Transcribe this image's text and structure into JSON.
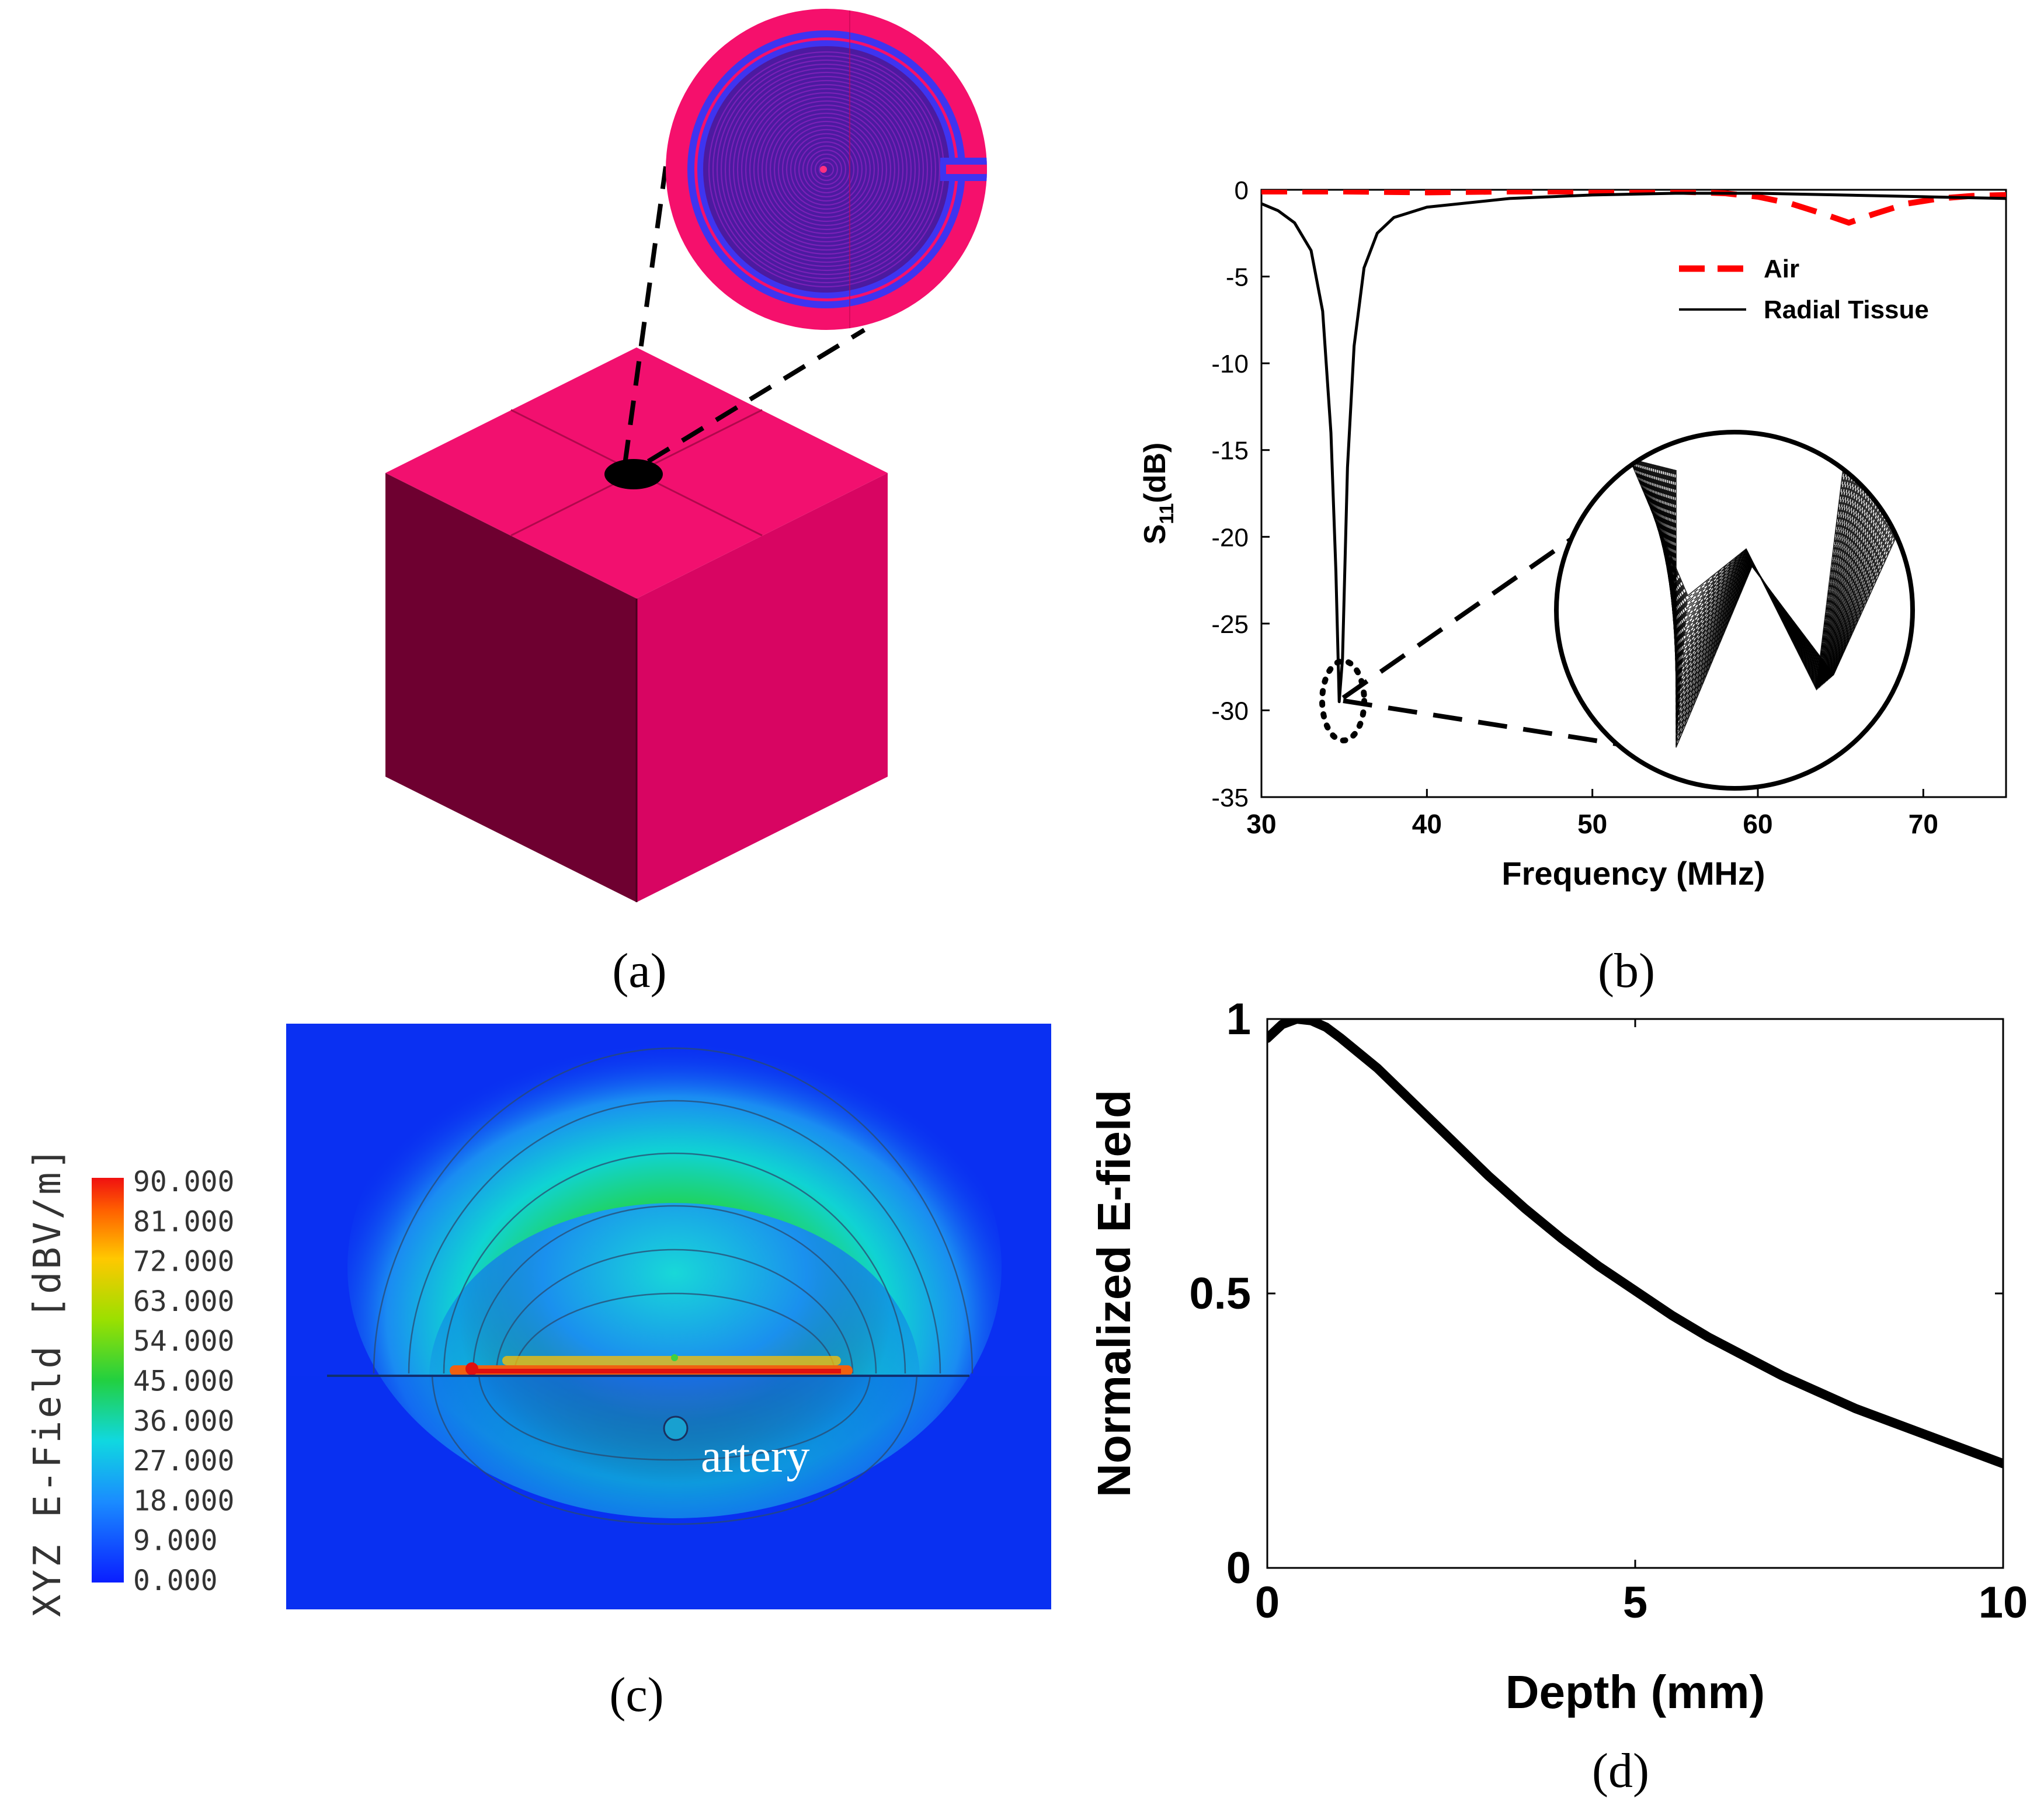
{
  "panel_labels": {
    "a": "(a)",
    "b": "(b)",
    "c": "(c)",
    "d": "(d)"
  },
  "colors": {
    "tissue_top": "#f2106f",
    "tissue_front": "#d80562",
    "tissue_side": "#6e0030",
    "coil_pink": "#f5106c",
    "coil_purple": "#6a16a8",
    "coil_ring": "#3e34f0",
    "air_line": "#ff0000",
    "tissue_line": "#000000"
  },
  "panel_c": {
    "colorbar_title": "XYZ E-Field [dBV/m]",
    "colorbar_ticks": [
      "90.000",
      "81.000",
      "72.000",
      "63.000",
      "54.000",
      "45.000",
      "36.000",
      "27.000",
      "18.000",
      "9.000",
      "0.000"
    ],
    "annotation": "artery"
  },
  "chart_data": [
    {
      "type": "line",
      "panel": "b",
      "title": "",
      "xlabel": "Frequency (MHz)",
      "ylabel_main": "S",
      "ylabel_sub": "11",
      "ylabel_unit": "(dB)",
      "xlim": [
        30,
        75
      ],
      "ylim": [
        -35,
        0
      ],
      "xticks": [
        30,
        40,
        50,
        60,
        70
      ],
      "yticks": [
        0,
        -5,
        -10,
        -15,
        -20,
        -25,
        -30,
        -35
      ],
      "legend": [
        "Air",
        "Radial Tissue"
      ],
      "legend_position": "top-right",
      "series": [
        {
          "name": "Air",
          "style": "dashed",
          "color": "#ff0000",
          "x": [
            30,
            35,
            40,
            45,
            50,
            55,
            58,
            60,
            62,
            64,
            65.5,
            67,
            69,
            71,
            73,
            75
          ],
          "y": [
            -0.1,
            -0.1,
            -0.15,
            -0.1,
            -0.1,
            -0.1,
            -0.2,
            -0.4,
            -0.8,
            -1.4,
            -1.9,
            -1.4,
            -0.8,
            -0.5,
            -0.35,
            -0.3
          ]
        },
        {
          "name": "Radial Tissue",
          "style": "solid",
          "color": "#000000",
          "x": [
            30,
            31,
            32,
            33,
            33.7,
            34.2,
            34.5,
            34.7,
            34.9,
            35.2,
            35.6,
            36.2,
            37,
            38,
            40,
            45,
            50,
            55,
            60,
            65,
            70,
            75
          ],
          "y": [
            -0.8,
            -1.2,
            -1.9,
            -3.5,
            -7,
            -14,
            -22,
            -29.5,
            -27,
            -16,
            -9,
            -4.5,
            -2.5,
            -1.6,
            -1.0,
            -0.5,
            -0.3,
            -0.2,
            -0.2,
            -0.3,
            -0.4,
            -0.5
          ]
        }
      ]
    },
    {
      "type": "line",
      "panel": "d",
      "title": "",
      "xlabel": "Depth (mm)",
      "ylabel": "Normalized E-field",
      "xlim": [
        0,
        10
      ],
      "ylim": [
        0,
        1
      ],
      "xticks": [
        0,
        5,
        10
      ],
      "yticks": [
        0,
        0.5,
        1
      ],
      "series": [
        {
          "name": "E-field",
          "x": [
            0,
            0.2,
            0.4,
            0.6,
            0.8,
            1,
            1.5,
            2,
            2.5,
            3,
            3.5,
            4,
            4.5,
            5,
            5.5,
            6,
            6.5,
            7,
            7.5,
            8,
            8.5,
            9,
            9.5,
            10
          ],
          "y": [
            0.965,
            0.99,
            1.0,
            0.997,
            0.985,
            0.965,
            0.91,
            0.845,
            0.78,
            0.715,
            0.655,
            0.6,
            0.55,
            0.505,
            0.46,
            0.42,
            0.385,
            0.35,
            0.32,
            0.29,
            0.265,
            0.24,
            0.215,
            0.19
          ]
        }
      ]
    }
  ]
}
